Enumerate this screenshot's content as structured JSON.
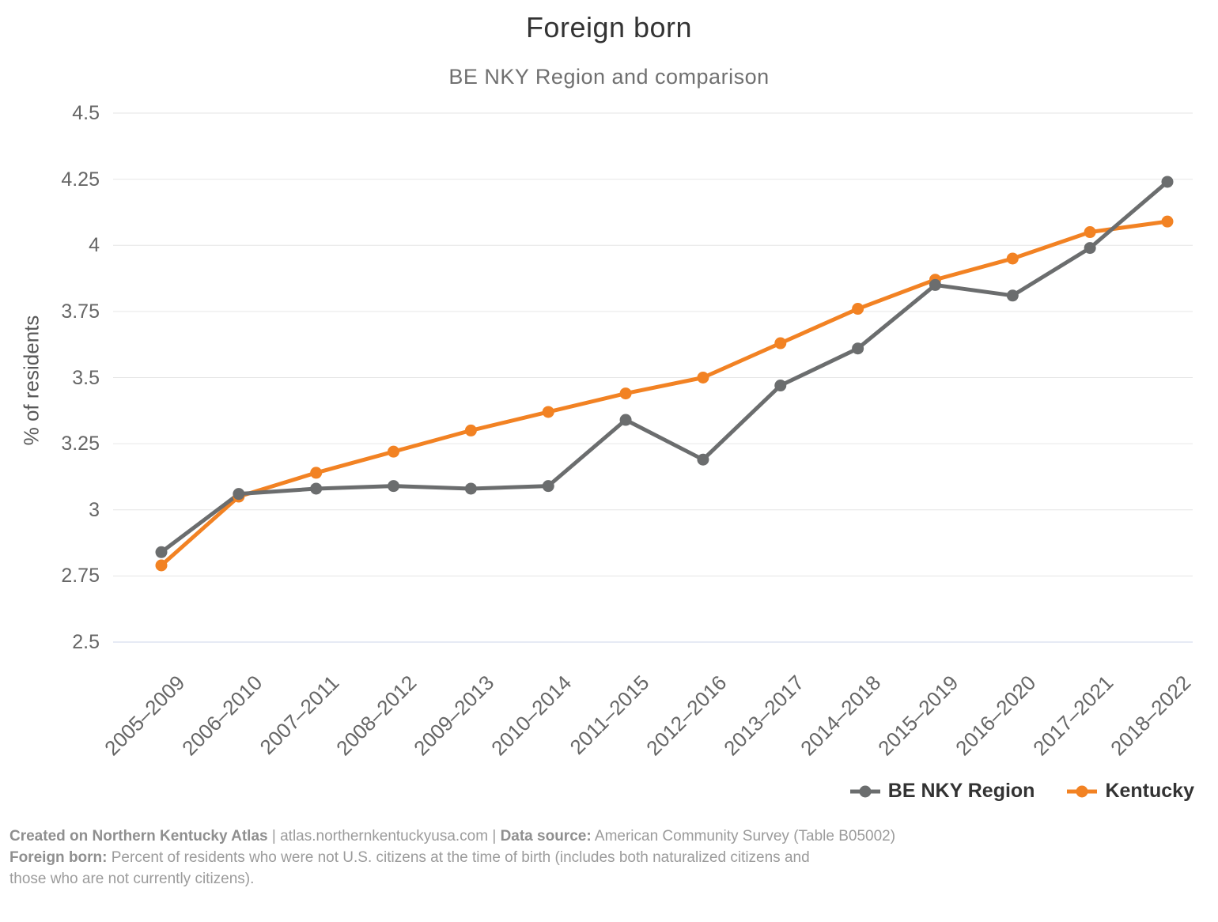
{
  "chart_data": {
    "type": "line",
    "title": "Foreign born",
    "subtitle": "BE NKY Region and comparison",
    "ylabel": "% of residents",
    "xlabel": "",
    "ylim": [
      2.5,
      4.5
    ],
    "ytick_values": [
      2.5,
      2.75,
      3,
      3.25,
      3.5,
      3.75,
      4,
      4.25,
      4.5
    ],
    "ytick_labels": [
      "2.5",
      "2.75",
      "3",
      "3.25",
      "3.5",
      "3.75",
      "4",
      "4.25",
      "4.5"
    ],
    "categories": [
      "2005–2009",
      "2006–2010",
      "2007–2011",
      "2008–2012",
      "2009–2013",
      "2010–2014",
      "2011–2015",
      "2012–2016",
      "2013–2017",
      "2014–2018",
      "2015–2019",
      "2016–2020",
      "2017–2021",
      "2018–2022"
    ],
    "series": [
      {
        "name": "BE NKY Region",
        "color": "#6b6d6e",
        "values": [
          2.84,
          3.06,
          3.08,
          3.09,
          3.08,
          3.09,
          3.34,
          3.19,
          3.47,
          3.61,
          3.85,
          3.81,
          3.99,
          4.24
        ]
      },
      {
        "name": "Kentucky",
        "color": "#f28223",
        "values": [
          2.79,
          3.05,
          3.14,
          3.22,
          3.3,
          3.37,
          3.44,
          3.5,
          3.63,
          3.76,
          3.87,
          3.95,
          4.05,
          4.09
        ]
      }
    ],
    "grid": true,
    "grid_color": "#e6e6e6",
    "axis_line_color": "#ccd6eb",
    "legend_position": "bottom-right"
  },
  "footer": {
    "created_label": "Created on Northern Kentucky Atlas",
    "sep1": " | ",
    "site": "atlas.northernkentuckyusa.com",
    "sep2": " | ",
    "source_label": "Data source:",
    "source_text": " American Community Survey (Table B05002)",
    "term_label": "Foreign born:",
    "term_text": " Percent of residents who were not U.S. citizens at the time of birth (includes both naturalized citizens and",
    "term_text2": "those who are not currently citizens)."
  }
}
